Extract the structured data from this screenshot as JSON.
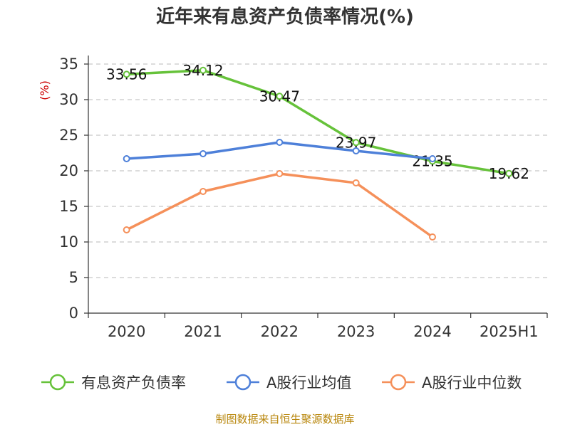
{
  "chart_data": {
    "type": "line",
    "title": "近年来有息资产负债率情况(%)",
    "ylabel": "(%)",
    "xlabel": "",
    "categories": [
      "2020",
      "2021",
      "2022",
      "2023",
      "2024",
      "2025H1"
    ],
    "ylim": [
      0,
      35
    ],
    "yticks": [
      0,
      5,
      10,
      15,
      20,
      25,
      30,
      35
    ],
    "grid": true,
    "legend_position": "bottom",
    "series": [
      {
        "name": "有息资产负债率",
        "color": "#66c23a",
        "values": [
          33.56,
          34.12,
          30.47,
          23.97,
          21.35,
          19.62
        ],
        "labels": [
          "33.56",
          "34.12",
          "30.47",
          "23.97",
          "21.35",
          "19.62"
        ]
      },
      {
        "name": "A股行业均值",
        "color": "#4e80d9",
        "values": [
          21.7,
          22.4,
          24.0,
          22.8,
          21.7,
          null
        ]
      },
      {
        "name": "A股行业中位数",
        "color": "#f5905a",
        "values": [
          11.7,
          17.1,
          19.6,
          18.3,
          10.7,
          null
        ]
      }
    ],
    "source": "制图数据来自恒生聚源数据库"
  }
}
